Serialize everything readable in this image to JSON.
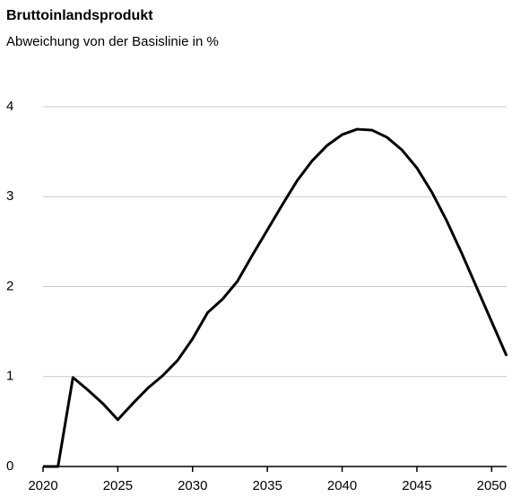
{
  "chart_data": {
    "type": "line",
    "title": "Bruttoinlandsprodukt",
    "subtitle": "Abweichung von der Basislinie in %",
    "x": [
      2020,
      2021,
      2022,
      2023,
      2024,
      2025,
      2026,
      2027,
      2028,
      2029,
      2030,
      2031,
      2032,
      2033,
      2034,
      2035,
      2036,
      2037,
      2038,
      2039,
      2040,
      2041,
      2042,
      2043,
      2044,
      2045,
      2046,
      2047,
      2048,
      2049,
      2050,
      2051
    ],
    "values": [
      0,
      0,
      0.99,
      0.85,
      0.7,
      0.52,
      0.7,
      0.87,
      1.01,
      1.18,
      1.42,
      1.71,
      1.86,
      2.06,
      2.35,
      2.63,
      2.91,
      3.18,
      3.4,
      3.57,
      3.69,
      3.75,
      3.74,
      3.66,
      3.52,
      3.32,
      3.05,
      2.73,
      2.37,
      1.99,
      1.61,
      1.23
    ],
    "color": "#000000",
    "xlim": [
      2020,
      2051
    ],
    "xticks": [
      2020,
      2025,
      2030,
      2035,
      2040,
      2045,
      2050
    ],
    "ylim": [
      0,
      4
    ],
    "yticks": [
      0,
      1,
      2,
      3,
      4
    ],
    "grid": true
  }
}
